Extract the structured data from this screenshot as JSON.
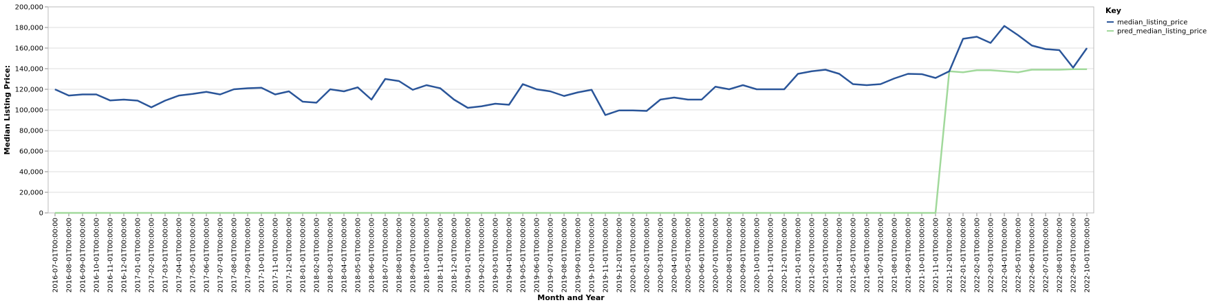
{
  "chart_data": {
    "type": "line",
    "xlabel": "Month and Year",
    "ylabel": "Median Listing Price:",
    "ylim": [
      0,
      200000
    ],
    "y_ticks": [
      0,
      20000,
      40000,
      60000,
      80000,
      100000,
      120000,
      140000,
      160000,
      180000,
      200000
    ],
    "y_tick_labels": [
      "0",
      "20,000",
      "40,000",
      "60,000",
      "80,000",
      "100,000",
      "120,000",
      "140,000",
      "160,000",
      "180,000",
      "200,000"
    ],
    "grid": true,
    "legend": {
      "title": "Key",
      "position": "top-right"
    },
    "x": [
      "2016-07-01T00:00:00",
      "2016-08-01T00:00:00",
      "2016-09-01T00:00:00",
      "2016-10-01T00:00:00",
      "2016-11-01T00:00:00",
      "2016-12-01T00:00:00",
      "2017-01-01T00:00:00",
      "2017-02-01T00:00:00",
      "2017-03-01T00:00:00",
      "2017-04-01T00:00:00",
      "2017-05-01T00:00:00",
      "2017-06-01T00:00:00",
      "2017-07-01T00:00:00",
      "2017-08-01T00:00:00",
      "2017-09-01T00:00:00",
      "2017-10-01T00:00:00",
      "2017-11-01T00:00:00",
      "2017-12-01T00:00:00",
      "2018-01-01T00:00:00",
      "2018-02-01T00:00:00",
      "2018-03-01T00:00:00",
      "2018-04-01T00:00:00",
      "2018-05-01T00:00:00",
      "2018-06-01T00:00:00",
      "2018-07-01T00:00:00",
      "2018-08-01T00:00:00",
      "2018-09-01T00:00:00",
      "2018-10-01T00:00:00",
      "2018-11-01T00:00:00",
      "2018-12-01T00:00:00",
      "2019-01-01T00:00:00",
      "2019-02-01T00:00:00",
      "2019-03-01T00:00:00",
      "2019-04-01T00:00:00",
      "2019-05-01T00:00:00",
      "2019-06-01T00:00:00",
      "2019-07-01T00:00:00",
      "2019-08-01T00:00:00",
      "2019-09-01T00:00:00",
      "2019-10-01T00:00:00",
      "2019-11-01T00:00:00",
      "2019-12-01T00:00:00",
      "2020-01-01T00:00:00",
      "2020-02-01T00:00:00",
      "2020-03-01T00:00:00",
      "2020-04-01T00:00:00",
      "2020-05-01T00:00:00",
      "2020-06-01T00:00:00",
      "2020-07-01T00:00:00",
      "2020-08-01T00:00:00",
      "2020-09-01T00:00:00",
      "2020-10-01T00:00:00",
      "2020-11-01T00:00:00",
      "2020-12-01T00:00:00",
      "2021-01-01T00:00:00",
      "2021-02-01T00:00:00",
      "2021-03-01T00:00:00",
      "2021-04-01T00:00:00",
      "2021-05-01T00:00:00",
      "2021-06-01T00:00:00",
      "2021-07-01T00:00:00",
      "2021-08-01T00:00:00",
      "2021-09-01T00:00:00",
      "2021-10-01T00:00:00",
      "2021-11-01T00:00:00",
      "2021-12-01T00:00:00",
      "2022-01-01T00:00:00",
      "2022-02-01T00:00:00",
      "2022-03-01T00:00:00",
      "2022-04-01T00:00:00",
      "2022-05-01T00:00:00",
      "2022-06-01T00:00:00",
      "2022-07-01T00:00:00",
      "2022-08-01T00:00:00",
      "2022-09-01T00:00:00",
      "2022-10-01T00:00:00"
    ],
    "series": [
      {
        "name": "median_listing_price",
        "color": "#2a5599",
        "values": [
          119900,
          113900,
          115000,
          115000,
          109200,
          110000,
          109000,
          102500,
          109000,
          113900,
          115500,
          117500,
          115000,
          120000,
          121000,
          121500,
          115000,
          118000,
          108000,
          107000,
          120000,
          118000,
          121900,
          110000,
          130000,
          128000,
          119500,
          124000,
          121000,
          110000,
          102000,
          103500,
          106000,
          105000,
          125000,
          120000,
          118000,
          113500,
          117000,
          119500,
          95000,
          99500,
          99500,
          99000,
          110000,
          112000,
          110000,
          110000,
          122500,
          120000,
          124000,
          120000,
          120000,
          120000,
          135000,
          137500,
          139000,
          135000,
          125000,
          124000,
          125000,
          130500,
          135000,
          134700,
          131000,
          137500,
          169000,
          171000,
          165000,
          181500,
          172500,
          162500,
          159000,
          158000,
          141000,
          159900
        ]
      },
      {
        "name": "pred_median_listing_price",
        "color": "#a1d99b",
        "values": [
          0,
          0,
          0,
          0,
          0,
          0,
          0,
          0,
          0,
          0,
          0,
          0,
          0,
          0,
          0,
          0,
          0,
          0,
          0,
          0,
          0,
          0,
          0,
          0,
          0,
          0,
          0,
          0,
          0,
          0,
          0,
          0,
          0,
          0,
          0,
          0,
          0,
          0,
          0,
          0,
          0,
          0,
          0,
          0,
          0,
          0,
          0,
          0,
          0,
          0,
          0,
          0,
          0,
          0,
          0,
          0,
          0,
          0,
          0,
          0,
          0,
          0,
          0,
          0,
          0,
          137500,
          136500,
          138500,
          138500,
          137500,
          136500,
          139000,
          139000,
          139000,
          139500,
          139500
        ]
      }
    ]
  }
}
